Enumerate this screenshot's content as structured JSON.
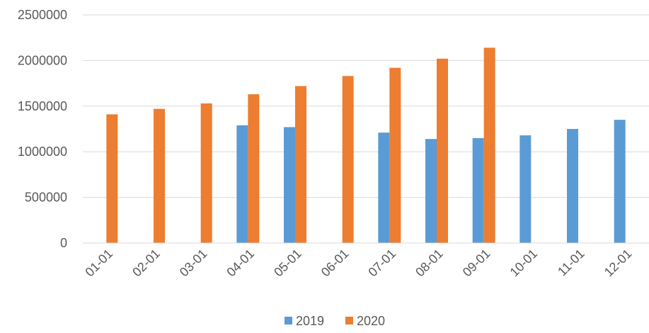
{
  "chart_data": {
    "type": "bar",
    "categories": [
      "01-01",
      "02-01",
      "03-01",
      "04-01",
      "05-01",
      "06-01",
      "07-01",
      "08-01",
      "09-01",
      "10-01",
      "11-01",
      "12-01"
    ],
    "series": [
      {
        "name": "2019",
        "color": "#5b9bd5",
        "values": [
          null,
          null,
          null,
          1290000,
          1270000,
          null,
          1210000,
          1140000,
          1150000,
          1180000,
          1250000,
          1350000
        ]
      },
      {
        "name": "2020",
        "color": "#ed7d31",
        "values": [
          1410000,
          1470000,
          1530000,
          1630000,
          1720000,
          1830000,
          1920000,
          2020000,
          2140000,
          null,
          null,
          null
        ]
      }
    ],
    "y_ticks": [
      "0",
      "500000",
      "1000000",
      "1500000",
      "2000000",
      "2500000"
    ],
    "ylim": [
      0,
      2500000
    ],
    "grid": true,
    "legend_position": "bottom"
  }
}
